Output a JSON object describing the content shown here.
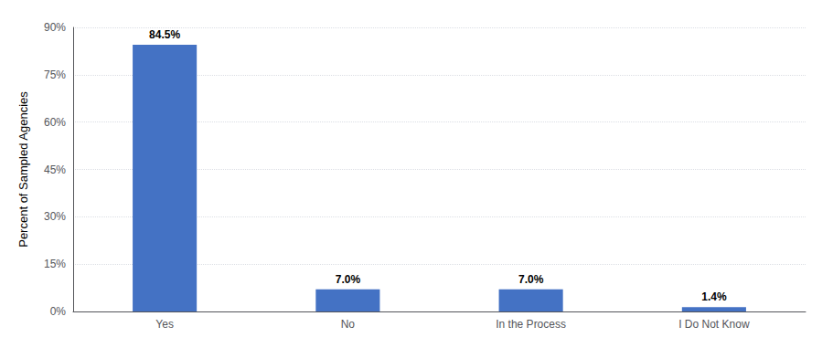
{
  "chart_data": {
    "type": "bar",
    "categories": [
      "Yes",
      "No",
      "In the Process",
      "I Do Not Know"
    ],
    "values": [
      84.5,
      7.0,
      7.0,
      1.4
    ],
    "value_labels": [
      "84.5%",
      "7.0%",
      "7.0%",
      "1.4%"
    ],
    "data_labels": true,
    "color": "#4472C4",
    "ylabel": "Percent of Sampled Agencies",
    "ylim": [
      0,
      90
    ],
    "yticks": [
      {
        "value": 0,
        "label": "0%"
      },
      {
        "value": 15,
        "label": "15%"
      },
      {
        "value": 30,
        "label": "30%"
      },
      {
        "value": 45,
        "label": "45%"
      },
      {
        "value": 60,
        "label": "60%"
      },
      {
        "value": 75,
        "label": "75%"
      },
      {
        "value": 90,
        "label": "90%"
      }
    ],
    "grid": true
  }
}
